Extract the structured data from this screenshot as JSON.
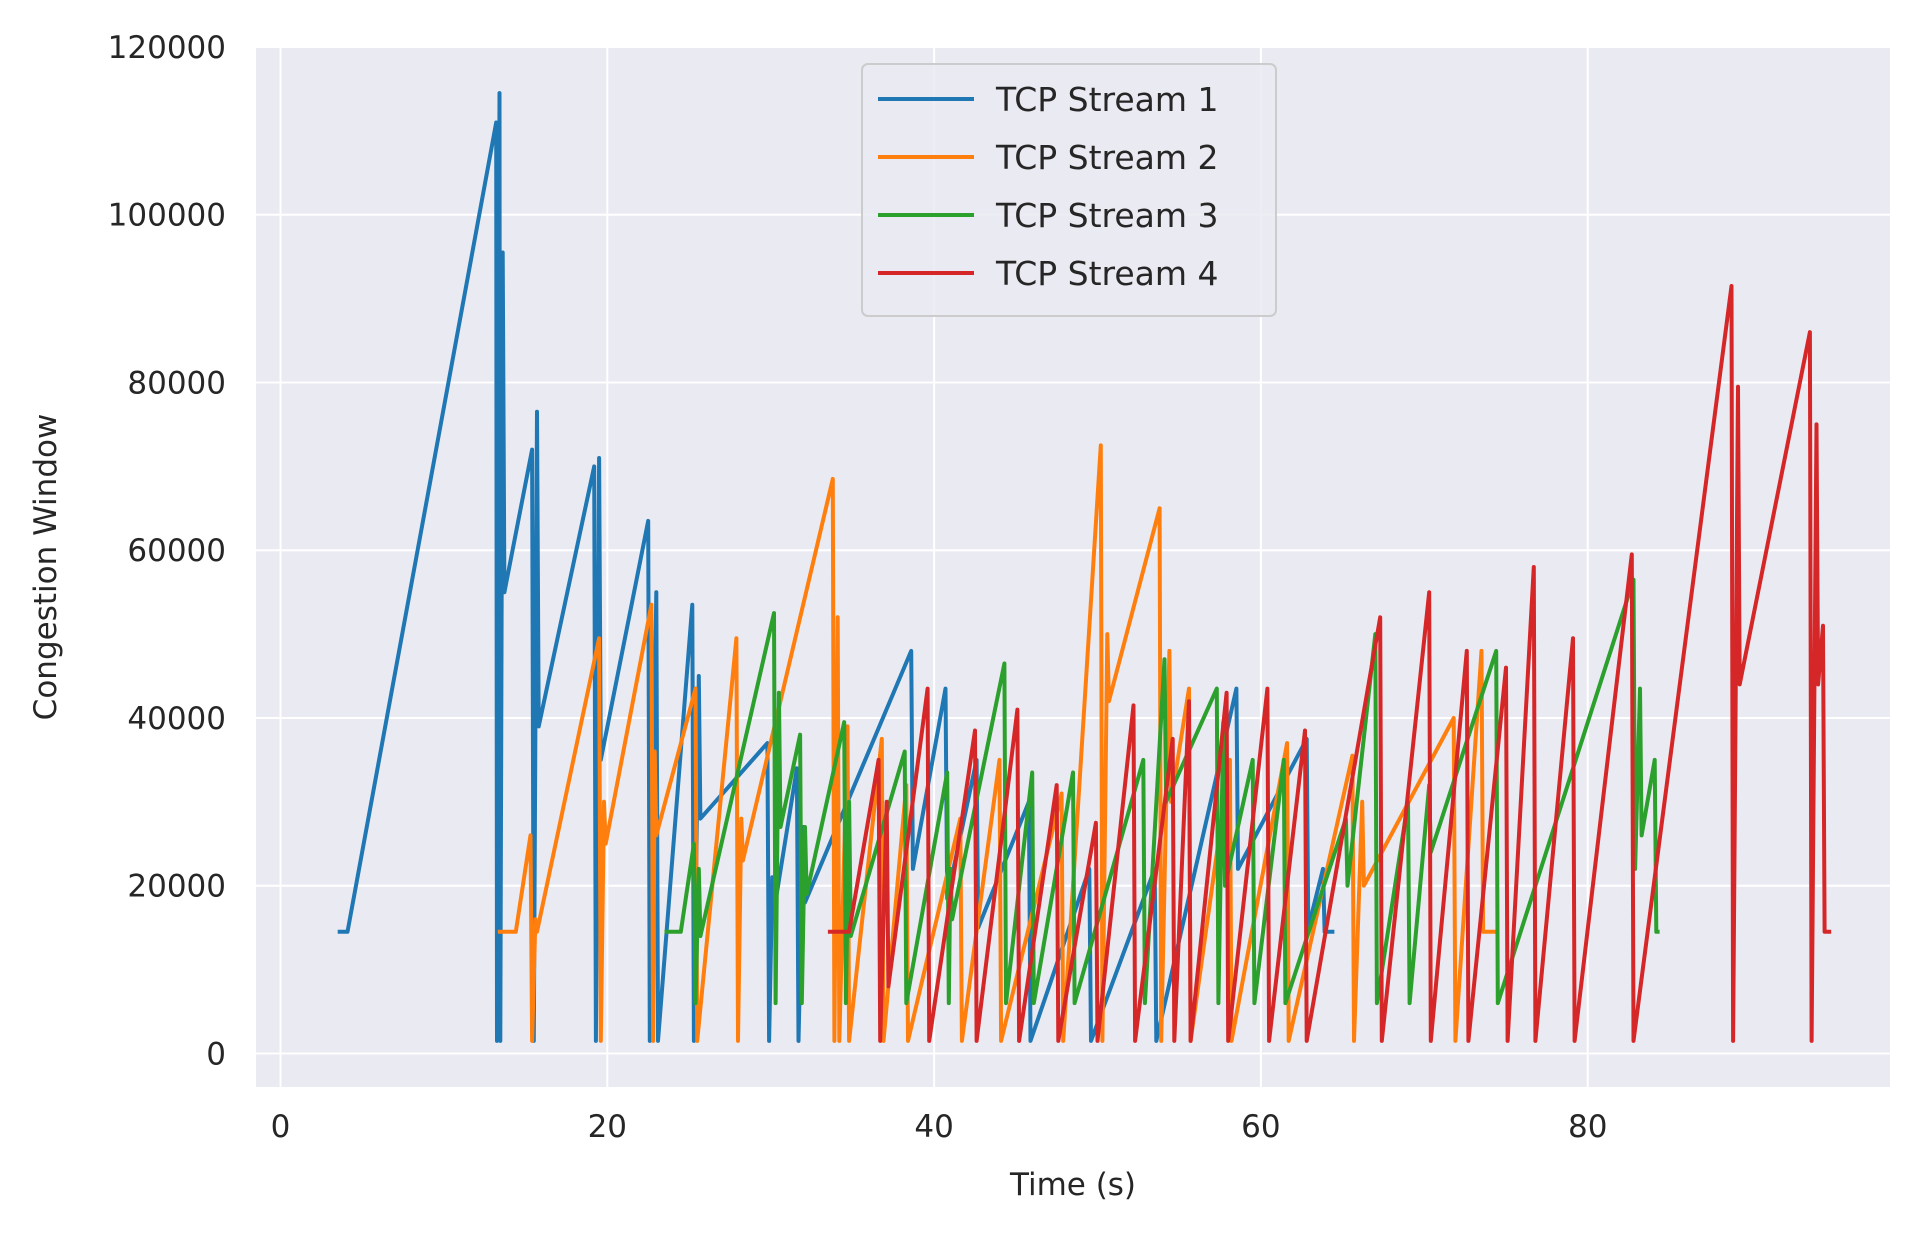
{
  "chart_data": {
    "type": "line",
    "title": "",
    "xlabel": "Time (s)",
    "ylabel": "Congestion Window",
    "xlim": [
      -1.5,
      98.5
    ],
    "ylim": [
      -4000,
      120000
    ],
    "xticks": [
      0,
      20,
      40,
      60,
      80
    ],
    "yticks": [
      0,
      20000,
      40000,
      60000,
      80000,
      100000,
      120000
    ],
    "xtick_labels": [
      "0",
      "20",
      "40",
      "60",
      "80"
    ],
    "ytick_labels": [
      "0",
      "20000",
      "40000",
      "60000",
      "80000",
      "100000",
      "120000"
    ],
    "grid": true,
    "legend_position": "upper center",
    "series": [
      {
        "name": "TCP Stream 1",
        "color": "#1f77b4",
        "x": [
          3.5,
          4.1,
          13.2,
          13.25,
          13.4,
          13.45,
          13.6,
          13.7,
          15.4,
          15.5,
          15.7,
          15.8,
          19.2,
          19.3,
          19.5,
          19.6,
          22.5,
          22.6,
          23.0,
          23.1,
          25.2,
          25.3,
          25.6,
          25.7,
          29.8,
          29.9,
          30.1,
          30.2,
          31.6,
          31.7,
          32.0,
          32.1,
          38.6,
          38.7,
          40.7,
          40.8,
          42.6,
          42.7,
          45.8,
          45.9,
          49.5,
          49.6,
          53.5,
          53.6,
          58.5,
          58.6,
          62.8,
          62.9,
          63.8,
          63.9,
          64.5
        ],
        "y": [
          14500,
          14500,
          111000,
          1500,
          114500,
          1500,
          95500,
          55000,
          72000,
          1500,
          76500,
          39000,
          70000,
          1500,
          71000,
          35000,
          63500,
          1500,
          55000,
          1500,
          53500,
          1500,
          45000,
          28000,
          37000,
          1500,
          21000,
          17000,
          34000,
          1500,
          27000,
          18000,
          48000,
          22000,
          43500,
          18500,
          35000,
          15000,
          30000,
          1500,
          22000,
          1500,
          22000,
          1500,
          43500,
          22000,
          37500,
          15000,
          22000,
          14500,
          14500
        ]
      },
      {
        "name": "TCP Stream 2",
        "color": "#ff7f0e",
        "x": [
          13.3,
          14.4,
          15.3,
          15.4,
          15.6,
          15.7,
          19.5,
          19.6,
          19.8,
          19.9,
          22.7,
          22.8,
          22.9,
          23.0,
          25.4,
          25.5,
          27.9,
          28.0,
          28.2,
          28.3,
          33.8,
          33.9,
          34.1,
          34.2,
          34.7,
          34.8,
          36.8,
          36.9,
          38.3,
          38.4,
          41.6,
          41.7,
          44.0,
          44.1,
          47.8,
          47.9,
          50.2,
          50.3,
          50.6,
          50.7,
          53.8,
          53.9,
          54.4,
          54.5,
          55.6,
          55.7,
          58.1,
          58.2,
          61.6,
          61.7,
          65.6,
          65.7,
          66.2,
          66.3,
          71.8,
          71.9,
          73.5,
          73.6,
          74.4
        ],
        "y": [
          14500,
          14500,
          26000,
          1500,
          16000,
          14500,
          49500,
          1500,
          30000,
          25000,
          53500,
          1500,
          36000,
          26000,
          43500,
          1500,
          49500,
          1500,
          28000,
          23000,
          68500,
          1500,
          52000,
          1500,
          39000,
          1500,
          37500,
          1500,
          32000,
          1500,
          28000,
          1500,
          35000,
          1500,
          31000,
          1500,
          72500,
          1500,
          50000,
          42000,
          65000,
          1500,
          48000,
          30000,
          43500,
          1500,
          35000,
          1500,
          37000,
          1500,
          35500,
          1500,
          30000,
          20000,
          40000,
          1500,
          48000,
          14500,
          14500
        ]
      },
      {
        "name": "TCP Stream 3",
        "color": "#2ca02c",
        "x": [
          23.5,
          24.5,
          25.3,
          25.4,
          25.6,
          25.7,
          30.2,
          30.3,
          30.5,
          30.6,
          31.8,
          31.9,
          32.1,
          32.2,
          34.5,
          34.6,
          34.8,
          34.9,
          38.2,
          38.3,
          40.8,
          40.9,
          41.0,
          41.1,
          44.3,
          44.4,
          46.0,
          46.1,
          48.5,
          48.6,
          52.8,
          52.9,
          54.1,
          54.2,
          57.3,
          57.4,
          57.7,
          57.8,
          59.5,
          59.6,
          61.4,
          61.5,
          65.2,
          65.3,
          67.0,
          67.1,
          69.0,
          69.1,
          70.3,
          70.4,
          74.4,
          74.5,
          82.8,
          82.9,
          83.2,
          83.3,
          84.1,
          84.2,
          84.4
        ],
        "y": [
          14500,
          14500,
          25000,
          6000,
          22000,
          14000,
          52500,
          6000,
          43000,
          27000,
          38000,
          6000,
          27000,
          19000,
          39500,
          6000,
          30000,
          14000,
          36000,
          6000,
          33500,
          6000,
          22000,
          16000,
          46500,
          6000,
          33500,
          6000,
          33500,
          6000,
          35000,
          6000,
          47000,
          30000,
          43500,
          6000,
          39500,
          20000,
          35000,
          6000,
          35000,
          6000,
          28000,
          20000,
          50000,
          6000,
          30000,
          6000,
          32000,
          24000,
          48000,
          6000,
          56500,
          22000,
          43500,
          26000,
          35000,
          14500,
          14500
        ]
      },
      {
        "name": "TCP Stream 4",
        "color": "#d62728",
        "x": [
          33.5,
          34.8,
          36.6,
          36.7,
          37.1,
          37.2,
          39.6,
          39.7,
          42.5,
          42.6,
          45.1,
          45.2,
          47.5,
          47.6,
          49.9,
          50.0,
          52.2,
          52.3,
          54.6,
          54.7,
          55.6,
          55.7,
          57.9,
          58.0,
          60.4,
          60.5,
          62.7,
          62.8,
          67.3,
          67.4,
          70.3,
          70.4,
          72.6,
          72.7,
          75.0,
          75.1,
          76.7,
          76.8,
          79.1,
          79.2,
          82.7,
          82.8,
          88.8,
          88.9,
          89.2,
          89.3,
          93.6,
          93.7,
          94.0,
          94.1,
          94.4,
          94.5,
          94.8,
          94.9
        ],
        "y": [
          14500,
          14500,
          35000,
          1500,
          30000,
          8000,
          43500,
          1500,
          38500,
          1500,
          41000,
          1500,
          32000,
          1500,
          27500,
          1500,
          41500,
          1500,
          37500,
          1500,
          42000,
          1500,
          43000,
          1500,
          43500,
          1500,
          38500,
          1500,
          52000,
          1500,
          55000,
          1500,
          48000,
          1500,
          46000,
          1500,
          58000,
          1500,
          49500,
          1500,
          59500,
          1500,
          91500,
          1500,
          79500,
          44000,
          86000,
          1500,
          75000,
          44000,
          51000,
          14500,
          14500,
          14500
        ]
      }
    ]
  }
}
